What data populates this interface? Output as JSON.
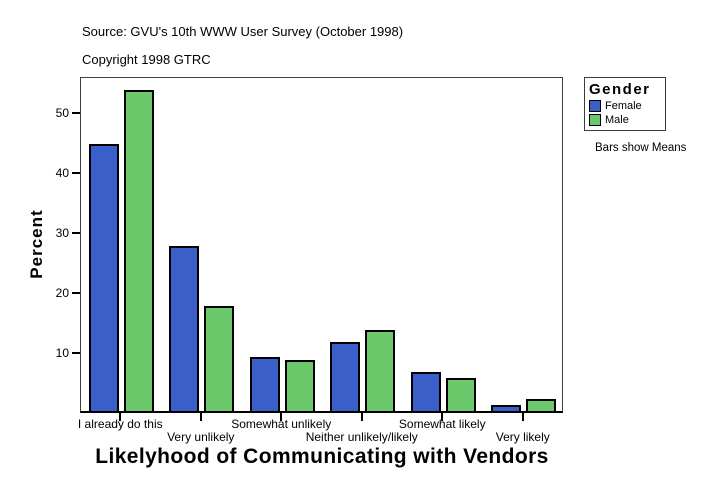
{
  "header": {
    "source": "Source: GVU's 10th WWW User Survey (October 1998)",
    "copyright": "Copyright 1998 GTRC"
  },
  "chart_data": {
    "type": "bar",
    "title": "Likelyhood of Communicating with Vendors",
    "ylabel": "Percent",
    "categories": [
      "I already do this",
      "Very unlikely",
      "Somewhat unlikely",
      "Neither unlikely/likely",
      "Somewhat likely",
      "Very likely"
    ],
    "series": [
      {
        "name": "Female",
        "color": "#3A5FC8",
        "values": [
          44.5,
          27.5,
          9,
          11.5,
          6.5,
          1
        ]
      },
      {
        "name": "Male",
        "color": "#6BC86B",
        "values": [
          53.5,
          17.5,
          8.5,
          13.5,
          5.5,
          2
        ]
      }
    ],
    "ylim": [
      0,
      56
    ],
    "yticks": [
      10,
      20,
      30,
      40,
      50
    ],
    "grid": false,
    "legend_position": "right-outside",
    "x_label_stagger": true
  },
  "legend": {
    "title": "Gender",
    "items": [
      {
        "label": "Female",
        "color": "#3A5FC8"
      },
      {
        "label": "Male",
        "color": "#6BC86B"
      }
    ],
    "note": "Bars show Means"
  }
}
